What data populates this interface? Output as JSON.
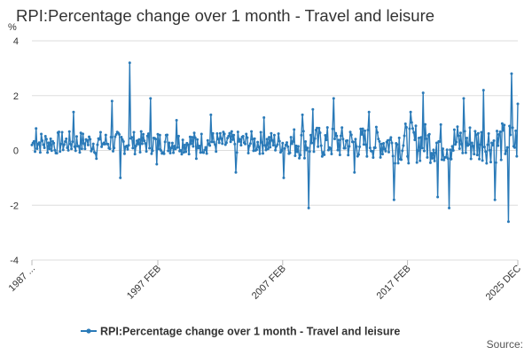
{
  "chart_data": {
    "type": "line",
    "title": "RPI:Percentage change over 1 month - Travel and leisure",
    "ylabel": "%",
    "ylim": [
      -4,
      4
    ],
    "yticks": [
      4,
      2,
      0,
      -2,
      -4
    ],
    "x_start": "1987 JAN",
    "x_end": "2025 DEC",
    "xticks": [
      {
        "label": "1987 ...",
        "date": "1987 JAN"
      },
      {
        "label": "1997 FEB",
        "date": "1997 FEB"
      },
      {
        "label": "2007 FEB",
        "date": "2007 FEB"
      },
      {
        "label": "2017 FEB",
        "date": "2017 FEB"
      },
      {
        "label": "2025 DEC",
        "date": "2025 DEC"
      }
    ],
    "grid": true,
    "legend": "bottom",
    "series": [
      {
        "name": "RPI:Percentage change over 1 month - Travel and leisure",
        "color": "#2a7ab8",
        "anchors": [
          {
            "date": "1987 JAN",
            "value": 0.2
          },
          {
            "date": "1987 MAY",
            "value": 0.8
          },
          {
            "date": "1989 JAN",
            "value": -0.1
          },
          {
            "date": "1990 MAY",
            "value": 1.4
          },
          {
            "date": "1991 MAY",
            "value": 0.4
          },
          {
            "date": "1992 MAR",
            "value": -0.3
          },
          {
            "date": "1993 JUN",
            "value": 1.8
          },
          {
            "date": "1994 FEB",
            "value": -1.0
          },
          {
            "date": "1994 NOV",
            "value": 3.2
          },
          {
            "date": "1995 AUG",
            "value": 0.4
          },
          {
            "date": "1996 JUL",
            "value": 1.9
          },
          {
            "date": "1997 JAN",
            "value": -0.5
          },
          {
            "date": "1998 AUG",
            "value": 1.1
          },
          {
            "date": "2000 MAR",
            "value": -0.3
          },
          {
            "date": "2001 MAY",
            "value": 1.3
          },
          {
            "date": "2003 MAY",
            "value": -0.8
          },
          {
            "date": "2005 AUG",
            "value": 1.2
          },
          {
            "date": "2007 MAR",
            "value": -1.0
          },
          {
            "date": "2008 SEP",
            "value": 1.3
          },
          {
            "date": "2009 MAR",
            "value": -2.1
          },
          {
            "date": "2009 JUL",
            "value": 1.5
          },
          {
            "date": "2011 MAR",
            "value": 1.9
          },
          {
            "date": "2012 NOV",
            "value": -0.8
          },
          {
            "date": "2014 JAN",
            "value": 1.4
          },
          {
            "date": "2016 JAN",
            "value": -1.8
          },
          {
            "date": "2017 MAY",
            "value": 1.4
          },
          {
            "date": "2018 MAY",
            "value": 2.1
          },
          {
            "date": "2019 JUL",
            "value": -1.7
          },
          {
            "date": "2020 JUN",
            "value": -2.1
          },
          {
            "date": "2021 AUG",
            "value": 1.9
          },
          {
            "date": "2023 MAR",
            "value": 2.2
          },
          {
            "date": "2024 FEB",
            "value": -1.8
          },
          {
            "date": "2025 MAR",
            "value": -2.6
          },
          {
            "date": "2025 JUN",
            "value": 2.8
          },
          {
            "date": "2025 DEC",
            "value": 1.7
          }
        ]
      }
    ]
  },
  "source_label": "Source:"
}
